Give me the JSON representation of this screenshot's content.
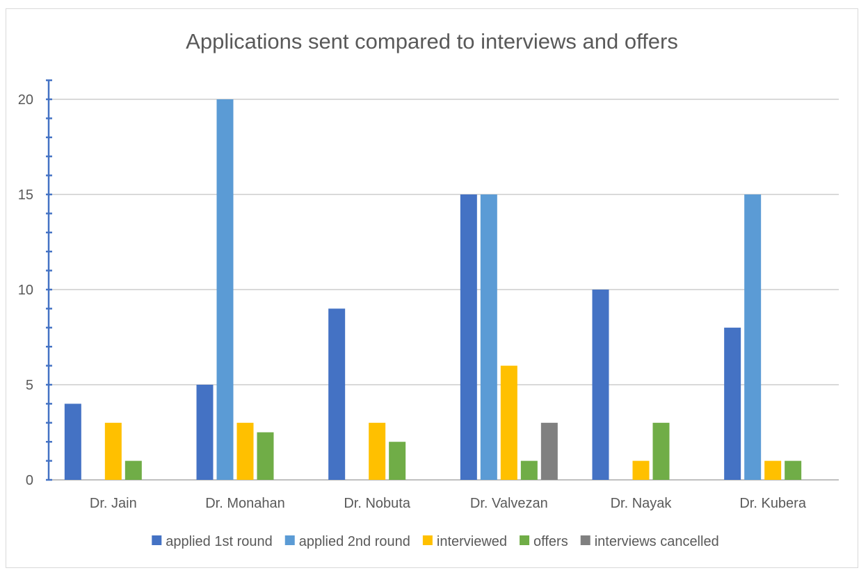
{
  "chart_data": {
    "type": "bar",
    "title": "Applications sent compared to interviews and offers",
    "xlabel": "",
    "ylabel": "",
    "categories": [
      "Dr. Jain",
      "Dr. Monahan",
      "Dr. Nobuta",
      "Dr. Valvezan",
      "Dr. Nayak",
      "Dr. Kubera"
    ],
    "series": [
      {
        "name": "applied 1st round",
        "color": "#4472c4",
        "values": [
          4,
          5,
          9,
          15,
          10,
          8
        ]
      },
      {
        "name": "applied 2nd round",
        "color": "#5b9bd5",
        "values": [
          0,
          20,
          0,
          15,
          0,
          15
        ]
      },
      {
        "name": "interviewed",
        "color": "#ffc000",
        "values": [
          3,
          3,
          3,
          6,
          1,
          1
        ]
      },
      {
        "name": "offers",
        "color": "#70ad47",
        "values": [
          1,
          2.5,
          2,
          1,
          3,
          1
        ]
      },
      {
        "name": "interviews cancelled",
        "color": "#808080",
        "values": [
          0,
          0,
          0,
          3,
          0,
          0
        ]
      }
    ],
    "ylim": [
      0,
      20
    ],
    "yticks": [
      0,
      5,
      10,
      15,
      20
    ],
    "grid": true,
    "legend_position": "bottom"
  }
}
